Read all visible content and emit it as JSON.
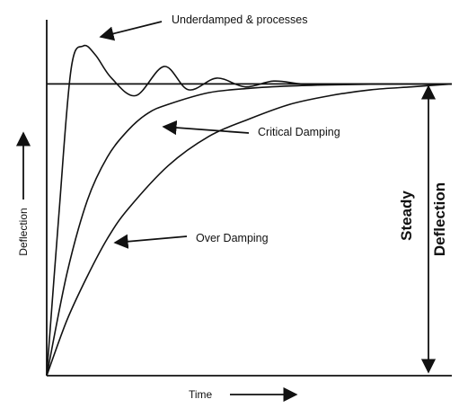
{
  "chart_data": {
    "type": "line",
    "title": "",
    "xlabel": "Time",
    "ylabel": "Deflection",
    "grid": false,
    "legend": "none",
    "steady_value": 1.0,
    "xlim": [
      0,
      10
    ],
    "ylim": [
      0,
      1.22
    ],
    "series": [
      {
        "name": "Underdamped & processes",
        "x": [
          0,
          0.3,
          0.6,
          0.9,
          1.2,
          1.6,
          2.2,
          2.9,
          3.5,
          4.2,
          4.9,
          5.6,
          6.3,
          7.0,
          7.8,
          8.6,
          10
        ],
        "y": [
          0,
          0.55,
          1.05,
          1.13,
          1.1,
          1.02,
          0.96,
          1.06,
          0.98,
          1.02,
          0.99,
          1.01,
          1.0,
          1.0,
          1.0,
          1.0,
          1.0
        ]
      },
      {
        "name": "Critical Damping",
        "x": [
          0,
          0.5,
          1.0,
          1.5,
          2.0,
          2.5,
          3.0,
          4.0,
          5.0,
          6.0,
          7.0,
          8.0,
          9.0,
          10
        ],
        "y": [
          0,
          0.35,
          0.6,
          0.75,
          0.84,
          0.9,
          0.93,
          0.97,
          0.985,
          0.993,
          0.997,
          0.999,
          1.0,
          1.0
        ]
      },
      {
        "name": "Over Damping",
        "x": [
          0,
          0.5,
          1.0,
          1.5,
          2.0,
          3.0,
          4.0,
          5.0,
          6.0,
          7.0,
          8.0,
          9.0,
          10
        ],
        "y": [
          0,
          0.19,
          0.34,
          0.47,
          0.57,
          0.72,
          0.82,
          0.88,
          0.93,
          0.96,
          0.98,
          0.99,
          1.0
        ]
      }
    ],
    "annotations": [
      {
        "text": "Underdamped & processes",
        "target_series": 0
      },
      {
        "text": "Critical Damping",
        "target_series": 1
      },
      {
        "text": "Over Damping",
        "target_series": 2
      }
    ],
    "steady_label_line1": "Steady",
    "steady_label_line2": "Deflection"
  }
}
